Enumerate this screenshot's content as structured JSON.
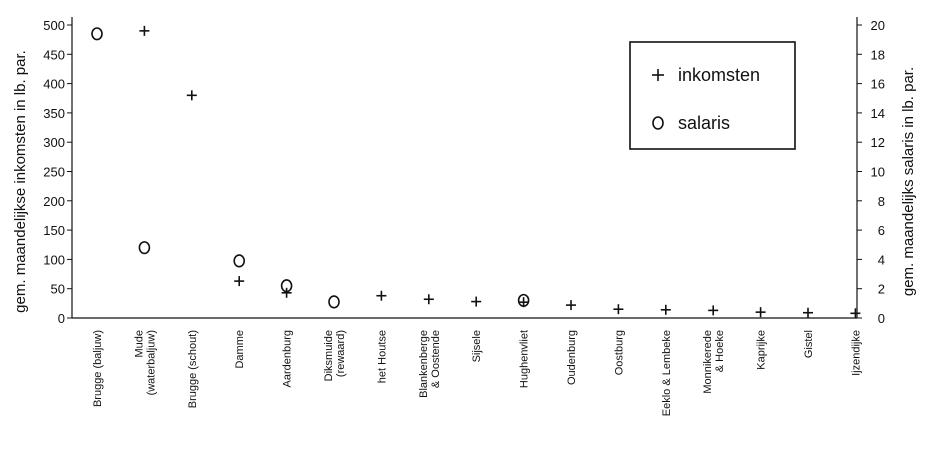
{
  "chart_data": {
    "type": "scatter",
    "title": "",
    "categories": [
      [
        "Brugge (baljuw)"
      ],
      [
        "Mude",
        "(waterbaljuw)"
      ],
      [
        "Brugge (schout)"
      ],
      [
        "Damme"
      ],
      [
        "Aardenburg"
      ],
      [
        "Diksmuide",
        "(rewaard)"
      ],
      [
        "het Houtse"
      ],
      [
        "Blankenberge",
        "& Oostende"
      ],
      [
        "Sijsele"
      ],
      [
        "Hughenvliet"
      ],
      [
        "Oudenburg"
      ],
      [
        "Oostburg"
      ],
      [
        "Eeklo & Lembeke"
      ],
      [
        "Monnikerede",
        "& Hoeke"
      ],
      [
        "Kaprijke"
      ],
      [
        "Gistel"
      ],
      [
        "Ijzendijke"
      ]
    ],
    "series": [
      {
        "name": "inkomsten",
        "marker": "+",
        "axis": "left",
        "values": [
          null,
          490,
          380,
          63,
          43,
          null,
          38,
          32,
          28,
          27,
          22,
          15,
          14,
          13,
          10,
          9,
          8
        ]
      },
      {
        "name": "salaris",
        "marker": "o",
        "axis": "right",
        "values": [
          19.4,
          4.8,
          null,
          3.9,
          2.2,
          1.1,
          null,
          null,
          null,
          1.2,
          null,
          null,
          null,
          null,
          null,
          null,
          null
        ]
      }
    ],
    "y_left": {
      "label": "gem. maandelijkse inkomsten in lb. par.",
      "ylim": [
        0,
        500
      ],
      "ticks": [
        0,
        50,
        100,
        150,
        200,
        250,
        300,
        350,
        400,
        450,
        500
      ]
    },
    "y_right": {
      "label": "gem. maandelijks salaris in lb. par.",
      "ylim": [
        0,
        20
      ],
      "ticks": [
        0,
        2,
        4,
        6,
        8,
        10,
        12,
        14,
        16,
        18,
        20
      ]
    },
    "grid": false,
    "legend": {
      "placement": "top-right",
      "items": [
        {
          "symbol": "+",
          "label": "inkomsten"
        },
        {
          "symbol": "o",
          "label": "salaris"
        }
      ]
    },
    "colors": {
      "ink": "#111111",
      "background": "#ffffff"
    }
  }
}
